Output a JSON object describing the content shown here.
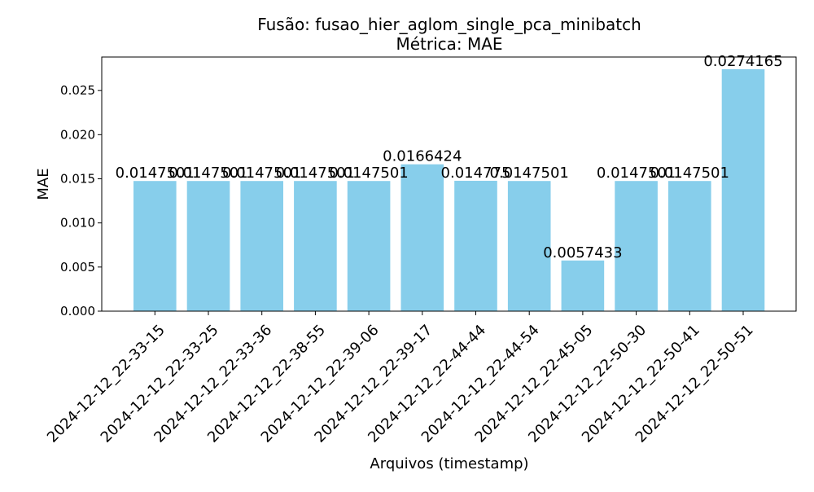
{
  "chart_data": {
    "type": "bar",
    "title": "Fusão: fusao_hier_aglom_single_pca_minibatch",
    "subtitle": "Métrica: MAE",
    "xlabel": "Arquivos (timestamp)",
    "ylabel": "MAE",
    "ylim": [
      0,
      0.0288
    ],
    "yticks": [
      "0.000",
      "0.005",
      "0.010",
      "0.015",
      "0.020",
      "0.025"
    ],
    "categories": [
      "2024-12-12_22-33-15",
      "2024-12-12_22-33-25",
      "2024-12-12_22-33-36",
      "2024-12-12_22-38-55",
      "2024-12-12_22-39-06",
      "2024-12-12_22-39-17",
      "2024-12-12_22-44-44",
      "2024-12-12_22-44-54",
      "2024-12-12_22-45-05",
      "2024-12-12_22-50-30",
      "2024-12-12_22-50-41",
      "2024-12-12_22-50-51"
    ],
    "values": [
      0.0147501,
      0.0147501,
      0.0147501,
      0.0147501,
      0.0147501,
      0.0166424,
      0.014775,
      0.0147501,
      0.0057433,
      0.0147501,
      0.0147501,
      0.0274165
    ],
    "value_labels": [
      "0.0147501",
      "0.0147501",
      "0.0147501",
      "0.0147501",
      "0.0147501",
      "0.0166424",
      "0.014775",
      "0.0147501",
      "0.0057433",
      "0.0147501",
      "0.0147501",
      "0.0274165"
    ],
    "bar_color": "#87ceeb",
    "grid": false,
    "legend": "none"
  }
}
